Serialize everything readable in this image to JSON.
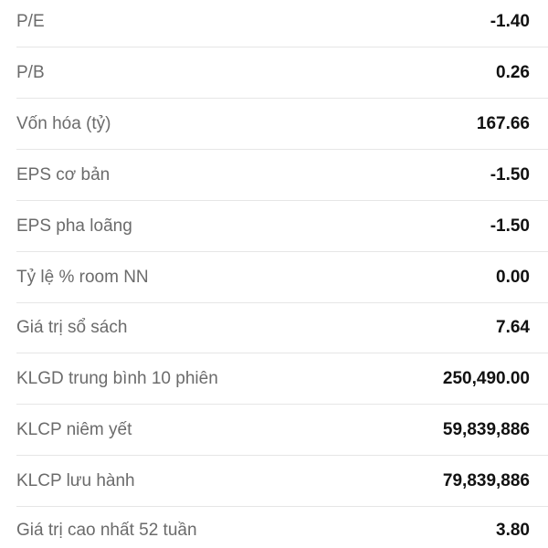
{
  "stats": [
    {
      "label": "P/E",
      "value": "-1.40"
    },
    {
      "label": "P/B",
      "value": "0.26"
    },
    {
      "label": "Vốn hóa (tỷ)",
      "value": "167.66"
    },
    {
      "label": "EPS cơ bản",
      "value": "-1.50"
    },
    {
      "label": "EPS pha loãng",
      "value": "-1.50"
    },
    {
      "label": "Tỷ lệ % room NN",
      "value": "0.00"
    },
    {
      "label": "Giá trị sổ sách",
      "value": "7.64"
    },
    {
      "label": "KLGD trung bình 10 phiên",
      "value": "250,490.00"
    },
    {
      "label": "KLCP niêm yết",
      "value": "59,839,886"
    },
    {
      "label": "KLCP lưu hành",
      "value": "79,839,886"
    },
    {
      "label": "Giá trị cao nhất 52 tuần",
      "value": "3.80"
    }
  ]
}
